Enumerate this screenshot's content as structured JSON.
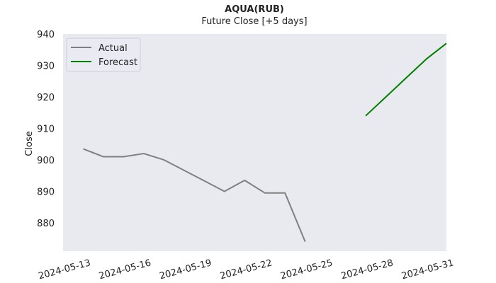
{
  "chart_data": {
    "type": "line",
    "title": "AQUA(RUB)",
    "subtitle": "Future Close [+5 days]",
    "xlabel": "",
    "ylabel": "Close",
    "x_ticks": [
      "2024-05-13",
      "2024-05-16",
      "2024-05-19",
      "2024-05-22",
      "2024-05-25",
      "2024-05-28",
      "2024-05-31"
    ],
    "y_ticks": [
      880,
      890,
      900,
      910,
      920,
      930,
      940
    ],
    "xlim": [
      "2024-05-12",
      "2024-05-31"
    ],
    "ylim": [
      871,
      940
    ],
    "grid": false,
    "legend_position": "upper-left",
    "series": [
      {
        "name": "Actual",
        "color": "#808080",
        "points": [
          {
            "x": "2024-05-13",
            "y": 903.5
          },
          {
            "x": "2024-05-14",
            "y": 901.0
          },
          {
            "x": "2024-05-15",
            "y": 901.0
          },
          {
            "x": "2024-05-16",
            "y": 902.0
          },
          {
            "x": "2024-05-17",
            "y": 900.0
          },
          {
            "x": "2024-05-20",
            "y": 890.0
          },
          {
            "x": "2024-05-21",
            "y": 893.5
          },
          {
            "x": "2024-05-22",
            "y": 889.5
          },
          {
            "x": "2024-05-23",
            "y": 889.5
          },
          {
            "x": "2024-05-24",
            "y": 874.0
          }
        ]
      },
      {
        "name": "Forecast",
        "color": "#008000",
        "points": [
          {
            "x": "2024-05-27",
            "y": 914.0
          },
          {
            "x": "2024-05-28",
            "y": 920.0
          },
          {
            "x": "2024-05-29",
            "y": 926.0
          },
          {
            "x": "2024-05-30",
            "y": 932.0
          },
          {
            "x": "2024-05-31",
            "y": 937.0
          }
        ]
      }
    ]
  }
}
